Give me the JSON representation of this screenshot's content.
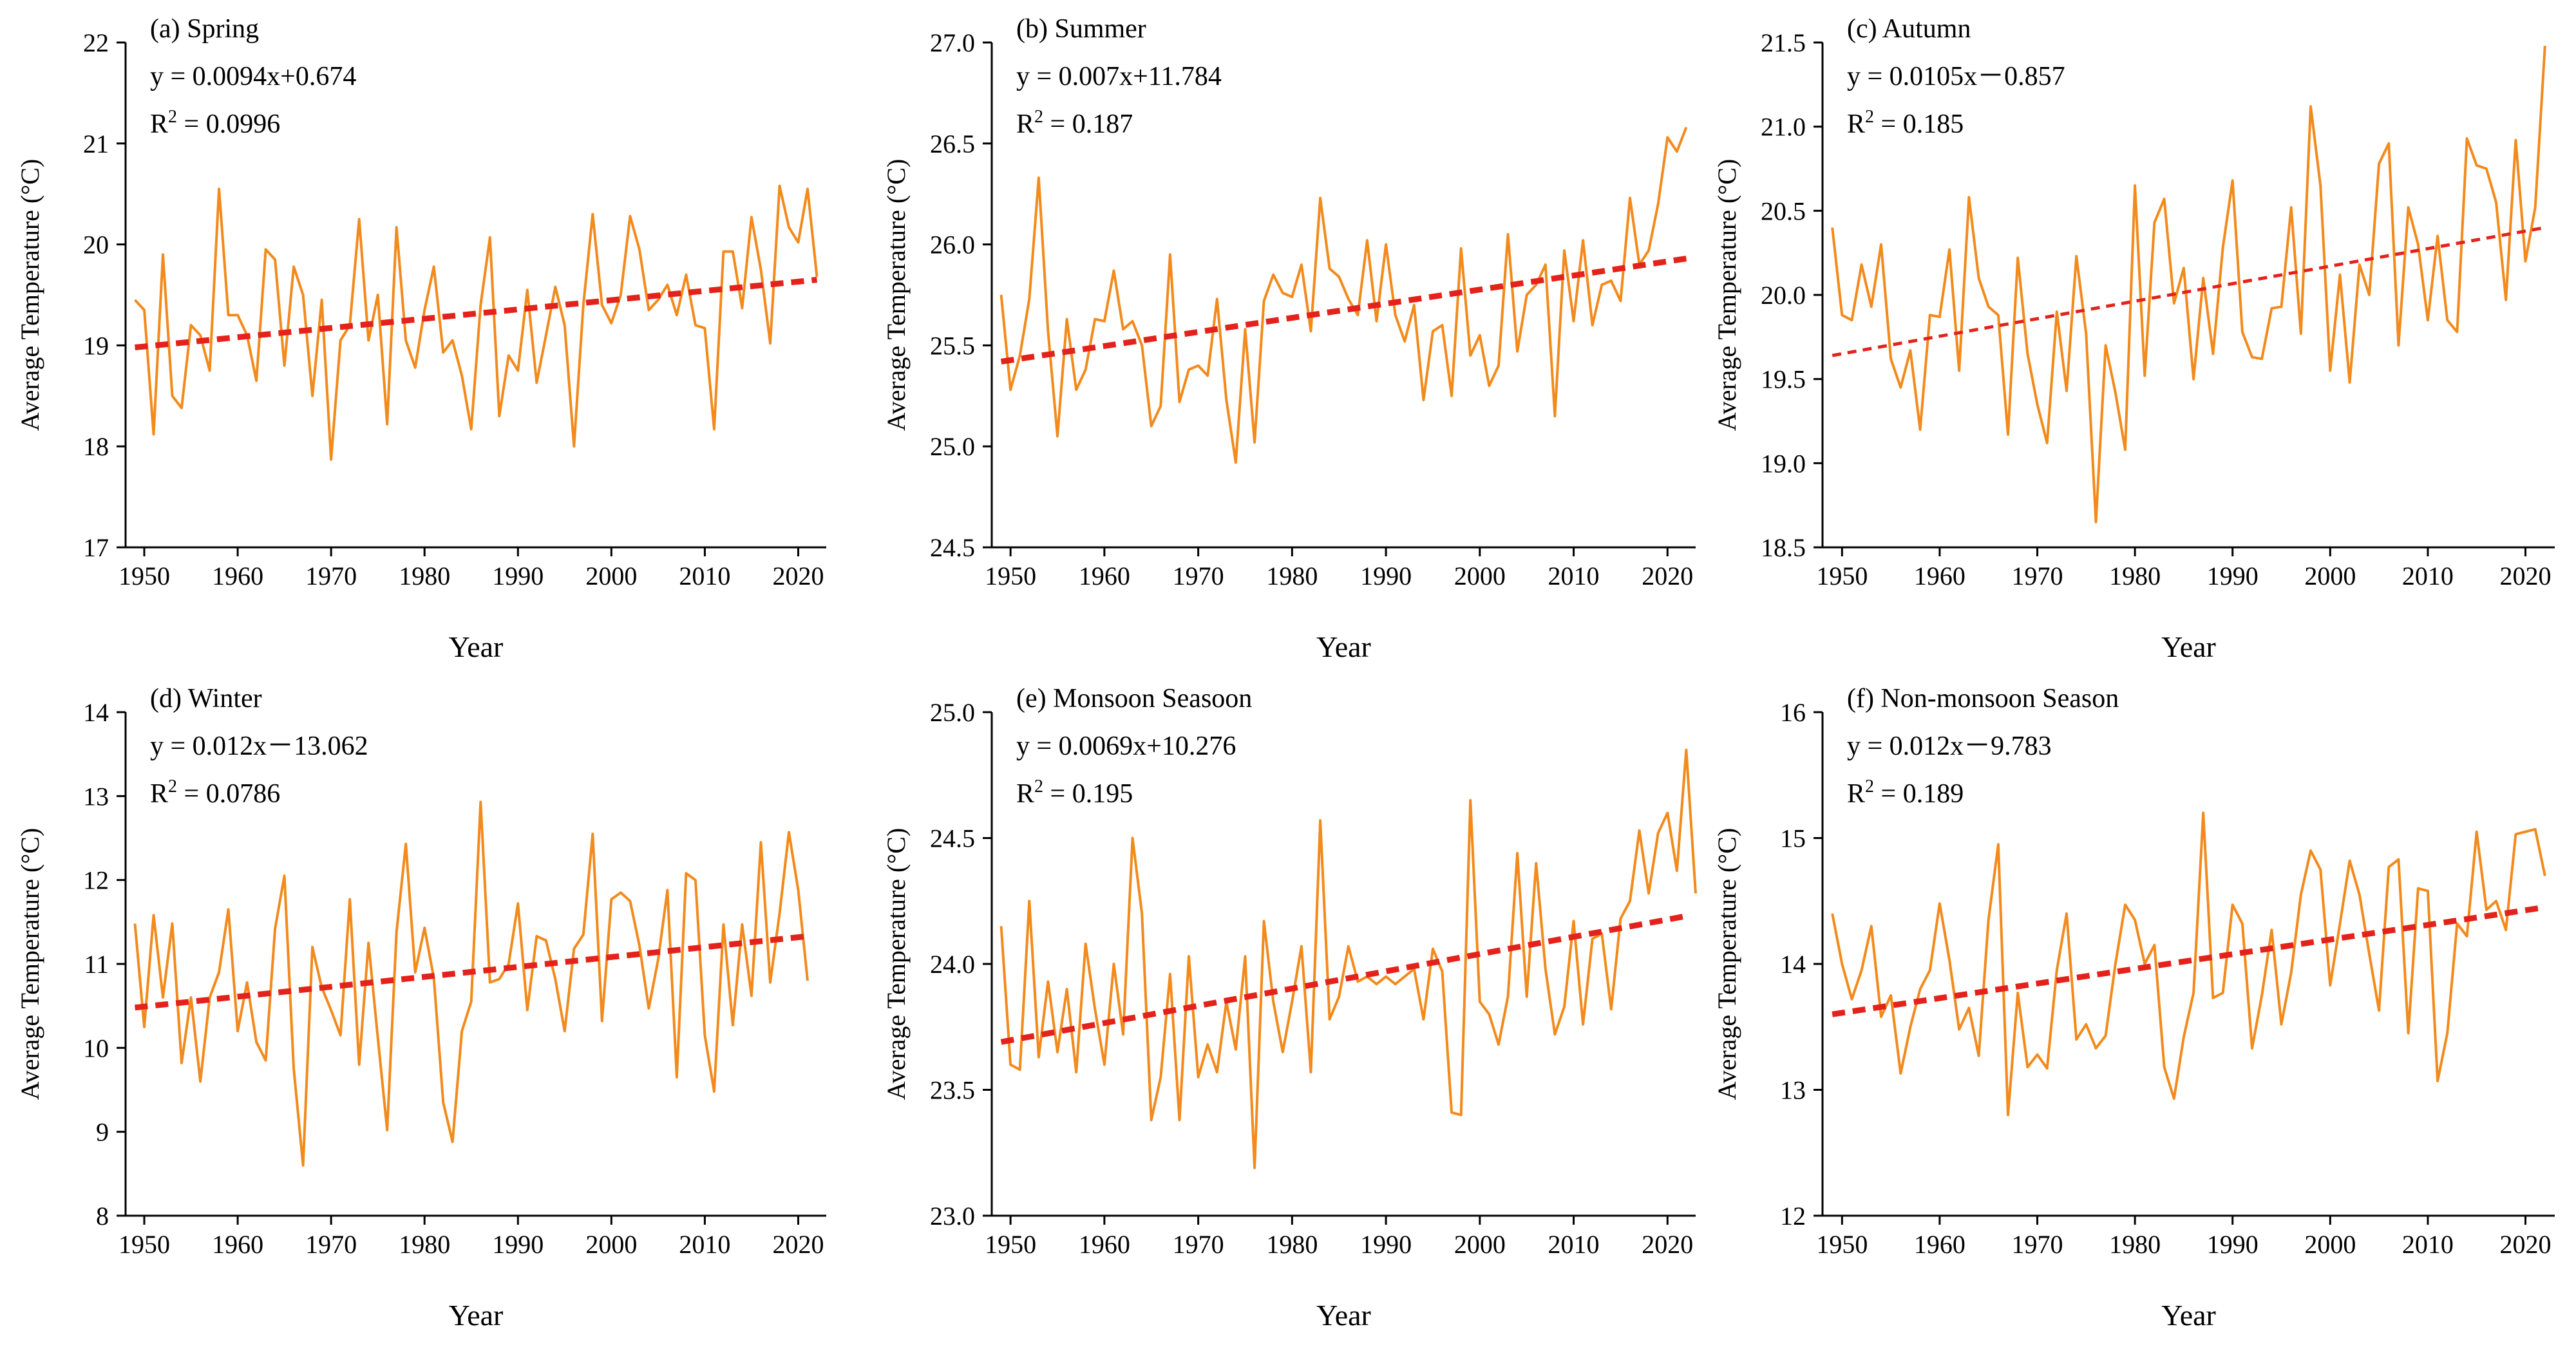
{
  "colors": {
    "series": "#f28a1c",
    "trend": "#e3231b",
    "axis": "#000000"
  },
  "chart_data": [
    {
      "type": "line",
      "panel": "(a) Spring",
      "equation": "y = 0.0094x+0.674",
      "r2_label": "R",
      "r2_sup": "2",
      "r2_value": " = 0.0996",
      "xlabel": "Year",
      "ylabel": "Average Temperature (°C)",
      "xlim": [
        1948,
        2023
      ],
      "ylim": [
        17,
        22
      ],
      "xticks": [
        1950,
        1960,
        1970,
        1980,
        1990,
        2000,
        2010,
        2020
      ],
      "yticks": [
        "17",
        "18",
        "19",
        "20",
        "21",
        "22"
      ],
      "x_start": 1949,
      "values": [
        19.45,
        19.35,
        18.12,
        19.9,
        18.5,
        18.38,
        19.2,
        19.1,
        18.75,
        20.55,
        19.3,
        19.3,
        19.1,
        18.65,
        19.95,
        19.85,
        18.8,
        19.78,
        19.5,
        18.5,
        19.45,
        17.87,
        19.05,
        19.2,
        20.25,
        19.05,
        19.5,
        18.22,
        20.17,
        19.05,
        18.78,
        19.35,
        19.78,
        18.93,
        19.05,
        18.7,
        18.17,
        19.4,
        20.07,
        18.3,
        18.9,
        18.75,
        19.55,
        18.63,
        19.1,
        19.58,
        19.2,
        18.0,
        19.4,
        20.3,
        19.4,
        19.22,
        19.5,
        20.28,
        19.95,
        19.35,
        19.45,
        19.6,
        19.3,
        19.7,
        19.2,
        19.17,
        18.17,
        19.93,
        19.93,
        19.37,
        20.27,
        19.75,
        19.02,
        20.58,
        20.17,
        20.02,
        20.55,
        19.68
      ],
      "trend": {
        "x": [
          1949,
          2022
        ],
        "y": [
          18.98,
          19.65
        ]
      }
    },
    {
      "type": "line",
      "panel": "(b) Summer",
      "equation": "y = 0.007x+11.784",
      "r2_label": "R",
      "r2_sup": "2",
      "r2_value": " = 0.187",
      "xlabel": "Year",
      "ylabel": "Average Temperature (°C)",
      "xlim": [
        1948,
        2023
      ],
      "ylim": [
        24.5,
        27.0
      ],
      "xticks": [
        1950,
        1960,
        1970,
        1980,
        1990,
        2000,
        2010,
        2020
      ],
      "yticks": [
        "24.5",
        "25.0",
        "25.5",
        "26.0",
        "26.5",
        "27.0"
      ],
      "x_start": 1949,
      "values": [
        25.75,
        25.28,
        25.45,
        25.73,
        26.33,
        25.57,
        25.05,
        25.63,
        25.28,
        25.38,
        25.63,
        25.62,
        25.87,
        25.58,
        25.62,
        25.5,
        25.1,
        25.2,
        25.95,
        25.22,
        25.38,
        25.4,
        25.35,
        25.73,
        25.23,
        24.92,
        25.58,
        25.02,
        25.72,
        25.85,
        25.76,
        25.74,
        25.9,
        25.57,
        26.23,
        25.88,
        25.84,
        25.73,
        25.65,
        26.02,
        25.62,
        26.0,
        25.65,
        25.52,
        25.7,
        25.23,
        25.57,
        25.6,
        25.25,
        25.98,
        25.45,
        25.55,
        25.3,
        25.4,
        26.05,
        25.47,
        25.75,
        25.8,
        25.9,
        25.15,
        25.97,
        25.62,
        26.02,
        25.6,
        25.8,
        25.82,
        25.72,
        26.23,
        25.9,
        25.97,
        26.2,
        26.53,
        26.46,
        26.58
      ],
      "trend": {
        "x": [
          1949,
          2022
        ],
        "y": [
          25.42,
          25.93
        ]
      }
    },
    {
      "type": "line",
      "panel": "(c) Autumn",
      "equation": "y = 0.0105x－0.857",
      "r2_label": "R",
      "r2_sup": "2",
      "r2_value": " = 0.185",
      "xlabel": "Year",
      "ylabel": "Average Temperature (°C)",
      "xlim": [
        1948,
        2023
      ],
      "ylim": [
        18.5,
        21.5
      ],
      "xticks": [
        1950,
        1960,
        1970,
        1980,
        1990,
        2000,
        2010,
        2020
      ],
      "yticks": [
        "18.5",
        "19.0",
        "19.5",
        "20.0",
        "20.5",
        "21.0",
        "21.5"
      ],
      "x_start": 1949,
      "values": [
        20.4,
        19.88,
        19.85,
        20.18,
        19.93,
        20.3,
        19.62,
        19.45,
        19.67,
        19.2,
        19.88,
        19.87,
        20.27,
        19.55,
        20.58,
        20.1,
        19.93,
        19.88,
        19.17,
        20.22,
        19.65,
        19.35,
        19.12,
        19.9,
        19.43,
        20.23,
        19.77,
        18.65,
        19.7,
        19.42,
        19.08,
        20.65,
        19.52,
        20.43,
        20.57,
        19.95,
        20.16,
        19.5,
        20.1,
        19.65,
        20.28,
        20.68,
        19.78,
        19.63,
        19.62,
        19.92,
        19.93,
        20.52,
        19.77,
        21.12,
        20.65,
        19.55,
        20.12,
        19.48,
        20.18,
        20.0,
        20.78,
        20.9,
        19.7,
        20.52,
        20.3,
        19.85,
        20.35,
        19.85,
        19.78,
        20.93,
        20.77,
        20.75,
        20.55,
        19.97,
        20.92,
        20.2,
        20.52,
        21.48
      ],
      "trend": {
        "x": [
          1949,
          2022
        ],
        "y": [
          19.64,
          20.4
        ]
      }
    },
    {
      "type": "line",
      "panel": "(d) Winter",
      "equation": "y = 0.012x－13.062",
      "r2_label": "R",
      "r2_sup": "2",
      "r2_value": " = 0.0786",
      "xlabel": "Year",
      "ylabel": "Average Temperature (°C)",
      "xlim": [
        1948,
        2023
      ],
      "ylim": [
        8,
        14
      ],
      "xticks": [
        1950,
        1960,
        1970,
        1980,
        1990,
        2000,
        2010,
        2020
      ],
      "yticks": [
        "8",
        "9",
        "10",
        "11",
        "12",
        "13",
        "14"
      ],
      "x_start": 1949,
      "values": [
        11.48,
        10.25,
        11.58,
        10.6,
        11.48,
        9.82,
        10.6,
        9.6,
        10.6,
        10.9,
        11.65,
        10.2,
        10.78,
        10.07,
        9.85,
        11.42,
        12.05,
        9.75,
        8.6,
        11.2,
        10.72,
        10.45,
        10.15,
        11.77,
        9.8,
        11.25,
        10.12,
        9.02,
        11.38,
        12.43,
        10.9,
        11.43,
        10.83,
        9.35,
        8.88,
        10.2,
        10.55,
        12.93,
        10.78,
        10.82,
        11.0,
        11.72,
        10.45,
        11.33,
        11.28,
        10.82,
        10.2,
        11.18,
        11.35,
        12.55,
        10.32,
        11.77,
        11.85,
        11.75,
        11.22,
        10.47,
        11.05,
        11.88,
        9.65,
        12.08,
        12.0,
        10.15,
        9.48,
        11.47,
        10.27,
        11.47,
        10.62,
        12.45,
        10.78,
        11.6,
        12.57,
        11.88,
        10.8
      ],
      "trend": {
        "x": [
          1949,
          2021
        ],
        "y": [
          10.48,
          11.33
        ]
      }
    },
    {
      "type": "line",
      "panel": "(e) Monsoon Seasoon",
      "equation": "y = 0.0069x+10.276",
      "r2_label": "R",
      "r2_sup": "2",
      "r2_value": " = 0.195",
      "xlabel": "Year",
      "ylabel": "Average Temperature (°C)",
      "xlim": [
        1948,
        2023
      ],
      "ylim": [
        23.0,
        25.0
      ],
      "xticks": [
        1950,
        1960,
        1970,
        1980,
        1990,
        2000,
        2010,
        2020
      ],
      "yticks": [
        "23.0",
        "23.5",
        "24.0",
        "24.5",
        "25.0"
      ],
      "x_start": 1949,
      "values": [
        24.15,
        23.6,
        23.58,
        24.25,
        23.63,
        23.93,
        23.65,
        23.9,
        23.57,
        24.08,
        23.82,
        23.6,
        24.0,
        23.72,
        24.5,
        24.2,
        23.38,
        23.55,
        23.96,
        23.38,
        24.03,
        23.55,
        23.68,
        23.57,
        23.85,
        23.66,
        24.03,
        23.19,
        24.17,
        23.85,
        23.65,
        23.85,
        24.07,
        23.57,
        24.57,
        23.78,
        23.87,
        24.07,
        23.93,
        23.95,
        23.92,
        23.95,
        23.92,
        23.95,
        23.98,
        23.78,
        24.06,
        23.97,
        23.41,
        23.4,
        24.65,
        23.85,
        23.8,
        23.68,
        23.87,
        24.44,
        23.87,
        24.4,
        23.98,
        23.72,
        23.83,
        24.17,
        23.76,
        24.1,
        24.12,
        23.82,
        24.18,
        24.25,
        24.53,
        24.28,
        24.52,
        24.6,
        24.37,
        24.85,
        24.28
      ],
      "trend": {
        "x": [
          1949,
          2022
        ],
        "y": [
          23.69,
          24.19
        ]
      }
    },
    {
      "type": "line",
      "panel": "(f) Non-monsoon Season",
      "equation": "y = 0.012x－9.783",
      "r2_label": "R",
      "r2_sup": "2",
      "r2_value": " = 0.189",
      "xlabel": "Year",
      "ylabel": "Average Temperature (°C)",
      "xlim": [
        1948,
        2023
      ],
      "ylim": [
        12,
        16
      ],
      "xticks": [
        1950,
        1960,
        1970,
        1980,
        1990,
        2000,
        2010,
        2020
      ],
      "yticks": [
        "12",
        "13",
        "14",
        "15",
        "16"
      ],
      "x_start": 1949,
      "values": [
        14.4,
        14.0,
        13.72,
        13.95,
        14.3,
        13.58,
        13.75,
        13.13,
        13.5,
        13.8,
        13.95,
        14.48,
        14.03,
        13.48,
        13.65,
        13.27,
        14.35,
        14.95,
        12.8,
        13.77,
        13.18,
        13.28,
        13.17,
        13.95,
        14.4,
        13.4,
        13.52,
        13.33,
        13.43,
        14.0,
        14.47,
        14.35,
        14.0,
        14.15,
        13.18,
        12.93,
        13.42,
        13.77,
        15.2,
        13.73,
        13.77,
        14.47,
        14.32,
        13.33,
        13.75,
        14.27,
        13.52,
        13.93,
        14.55,
        14.9,
        14.75,
        13.83,
        14.32,
        14.82,
        14.55,
        14.08,
        13.63,
        14.77,
        14.83,
        13.45,
        14.6,
        14.58,
        13.07,
        13.45,
        14.32,
        14.22,
        15.05,
        14.43,
        14.5,
        14.27,
        15.03,
        15.05,
        15.07,
        14.7
      ],
      "trend": {
        "x": [
          1949,
          2022
        ],
        "y": [
          13.6,
          14.45
        ]
      }
    }
  ]
}
